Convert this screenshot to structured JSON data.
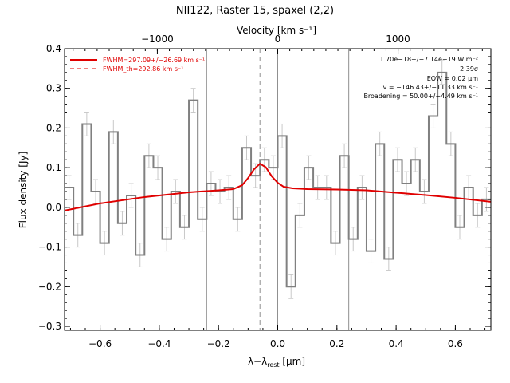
{
  "chart_data": {
    "type": "line",
    "title": "NII122, Raster 15, spaxel (2,2)",
    "xlabel": "λ−λrest [μm]",
    "xlabel_main": "λ−λ",
    "xlabel_sub": "rest",
    "xlabel_unit": " [μm]",
    "ylabel": "Flux density [Jy]",
    "top_xlabel": "Velocity [km s⁻¹]",
    "xlim": [
      -0.72,
      0.72
    ],
    "ylim": [
      -0.31,
      0.4
    ],
    "x_ticks": [
      -0.6,
      -0.4,
      -0.2,
      0.0,
      0.2,
      0.4,
      0.6
    ],
    "x_tick_labels": [
      "−0.6",
      "−0.4",
      "−0.2",
      "0.0",
      "0.2",
      "0.4",
      "0.6"
    ],
    "y_ticks": [
      -0.3,
      -0.2,
      -0.1,
      0.0,
      0.1,
      0.2,
      0.3,
      0.4
    ],
    "y_tick_labels": [
      "−0.3",
      "−0.2",
      "−0.1",
      "0.0",
      "0.1",
      "0.2",
      "0.3",
      "0.4"
    ],
    "top_ticks_velocity": [
      -1000,
      0,
      1000
    ],
    "top_tick_labels": [
      "−1000",
      "0",
      "1000"
    ],
    "rest_wavelength_um": 121.9,
    "vertical_lines_um": [
      -0.24,
      0.0,
      0.24
    ],
    "fit_center_um": -0.06,
    "grid": false,
    "legend_position": "top-left",
    "legend": [
      {
        "label": "FWHM=297.09+/−26.69 km s⁻¹",
        "style": "solid",
        "color": "#e00000"
      },
      {
        "label": "FWHM_th=292.86 km s⁻¹",
        "style": "dashed",
        "color": "#e00000"
      }
    ],
    "annotations": [
      "1.70e−18+/−7.14e−19 W m⁻²",
      "2.39σ",
      "EQW = 0.02 μm",
      "v = −146.43+/−11.33 km s⁻¹",
      "Broadening = 50.00+/−4.49 km s⁻¹"
    ],
    "series": [
      {
        "name": "",
        "style": "step",
        "color": "#808080",
        "x": [
          -0.72,
          -0.69,
          -0.66,
          -0.63,
          -0.6,
          -0.57,
          -0.54,
          -0.51,
          -0.48,
          -0.45,
          -0.42,
          -0.39,
          -0.36,
          -0.33,
          -0.3,
          -0.27,
          -0.24,
          -0.21,
          -0.18,
          -0.15,
          -0.12,
          -0.09,
          -0.06,
          -0.03,
          0.0,
          0.03,
          0.06,
          0.09,
          0.12,
          0.15,
          0.18,
          0.21,
          0.24,
          0.27,
          0.3,
          0.33,
          0.36,
          0.39,
          0.42,
          0.45,
          0.48,
          0.51,
          0.54,
          0.57,
          0.6,
          0.63,
          0.66,
          0.69
        ],
        "y": [
          0.05,
          -0.07,
          0.21,
          0.04,
          -0.09,
          0.19,
          -0.04,
          0.03,
          -0.12,
          0.13,
          0.1,
          -0.08,
          0.04,
          -0.05,
          0.27,
          -0.03,
          0.06,
          0.04,
          0.05,
          -0.03,
          0.15,
          0.08,
          0.12,
          0.1,
          0.18,
          -0.2,
          -0.02,
          0.1,
          0.05,
          0.05,
          -0.09,
          0.13,
          -0.08,
          0.05,
          -0.11,
          0.16,
          -0.13,
          0.12,
          0.06,
          0.12,
          0.04,
          0.23,
          0.34,
          0.16,
          -0.05,
          0.05,
          -0.02,
          0.02
        ],
        "errors": [
          0.03,
          0.03,
          0.03,
          0.03,
          0.03,
          0.03,
          0.03,
          0.03,
          0.03,
          0.03,
          0.03,
          0.03,
          0.03,
          0.03,
          0.03,
          0.03,
          0.03,
          0.03,
          0.03,
          0.03,
          0.03,
          0.03,
          0.03,
          0.03,
          0.03,
          0.03,
          0.03,
          0.03,
          0.03,
          0.03,
          0.03,
          0.03,
          0.03,
          0.03,
          0.03,
          0.03,
          0.03,
          0.03,
          0.03,
          0.03,
          0.03,
          0.03,
          0.03,
          0.03,
          0.03,
          0.03,
          0.03,
          0.03
        ]
      },
      {
        "name": "",
        "style": "line",
        "color": "#e00000",
        "x": [
          -0.72,
          -0.6,
          -0.45,
          -0.3,
          -0.2,
          -0.15,
          -0.12,
          -0.1,
          -0.08,
          -0.06,
          -0.04,
          -0.02,
          0.0,
          0.02,
          0.05,
          0.1,
          0.2,
          0.3,
          0.4,
          0.5,
          0.6,
          0.72
        ],
        "y": [
          -0.008,
          0.01,
          0.026,
          0.038,
          0.043,
          0.046,
          0.056,
          0.074,
          0.096,
          0.11,
          0.101,
          0.078,
          0.062,
          0.052,
          0.048,
          0.046,
          0.045,
          0.043,
          0.037,
          0.031,
          0.024,
          0.014
        ]
      }
    ]
  }
}
